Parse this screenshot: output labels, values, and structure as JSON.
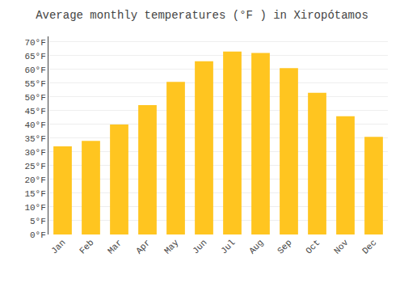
{
  "chart_data": {
    "type": "bar",
    "title": "Average monthly temperatures (°F ) in Xiropótamos",
    "categories": [
      "Jan",
      "Feb",
      "Mar",
      "Apr",
      "May",
      "Jun",
      "Jul",
      "Aug",
      "Sep",
      "Oct",
      "Nov",
      "Dec"
    ],
    "values": [
      32,
      34,
      40,
      47,
      55.5,
      63,
      66.5,
      66,
      60.5,
      51.5,
      43,
      35.5
    ],
    "color": "#FFC520",
    "ylim": [
      0,
      72
    ],
    "yticks": [
      {
        "value": 0,
        "label": "0°F"
      },
      {
        "value": 5,
        "label": "5°F"
      },
      {
        "value": 10,
        "label": "10°F"
      },
      {
        "value": 15,
        "label": "15°F"
      },
      {
        "value": 20,
        "label": "20°F"
      },
      {
        "value": 25,
        "label": "25°F"
      },
      {
        "value": 30,
        "label": "30°F"
      },
      {
        "value": 35,
        "label": "35°F"
      },
      {
        "value": 40,
        "label": "40°F"
      },
      {
        "value": 45,
        "label": "45°F"
      },
      {
        "value": 50,
        "label": "50°F"
      },
      {
        "value": 55,
        "label": "55°F"
      },
      {
        "value": 60,
        "label": "60°F"
      },
      {
        "value": 65,
        "label": "65°F"
      },
      {
        "value": 70,
        "label": "70°F"
      }
    ],
    "grid": true
  }
}
